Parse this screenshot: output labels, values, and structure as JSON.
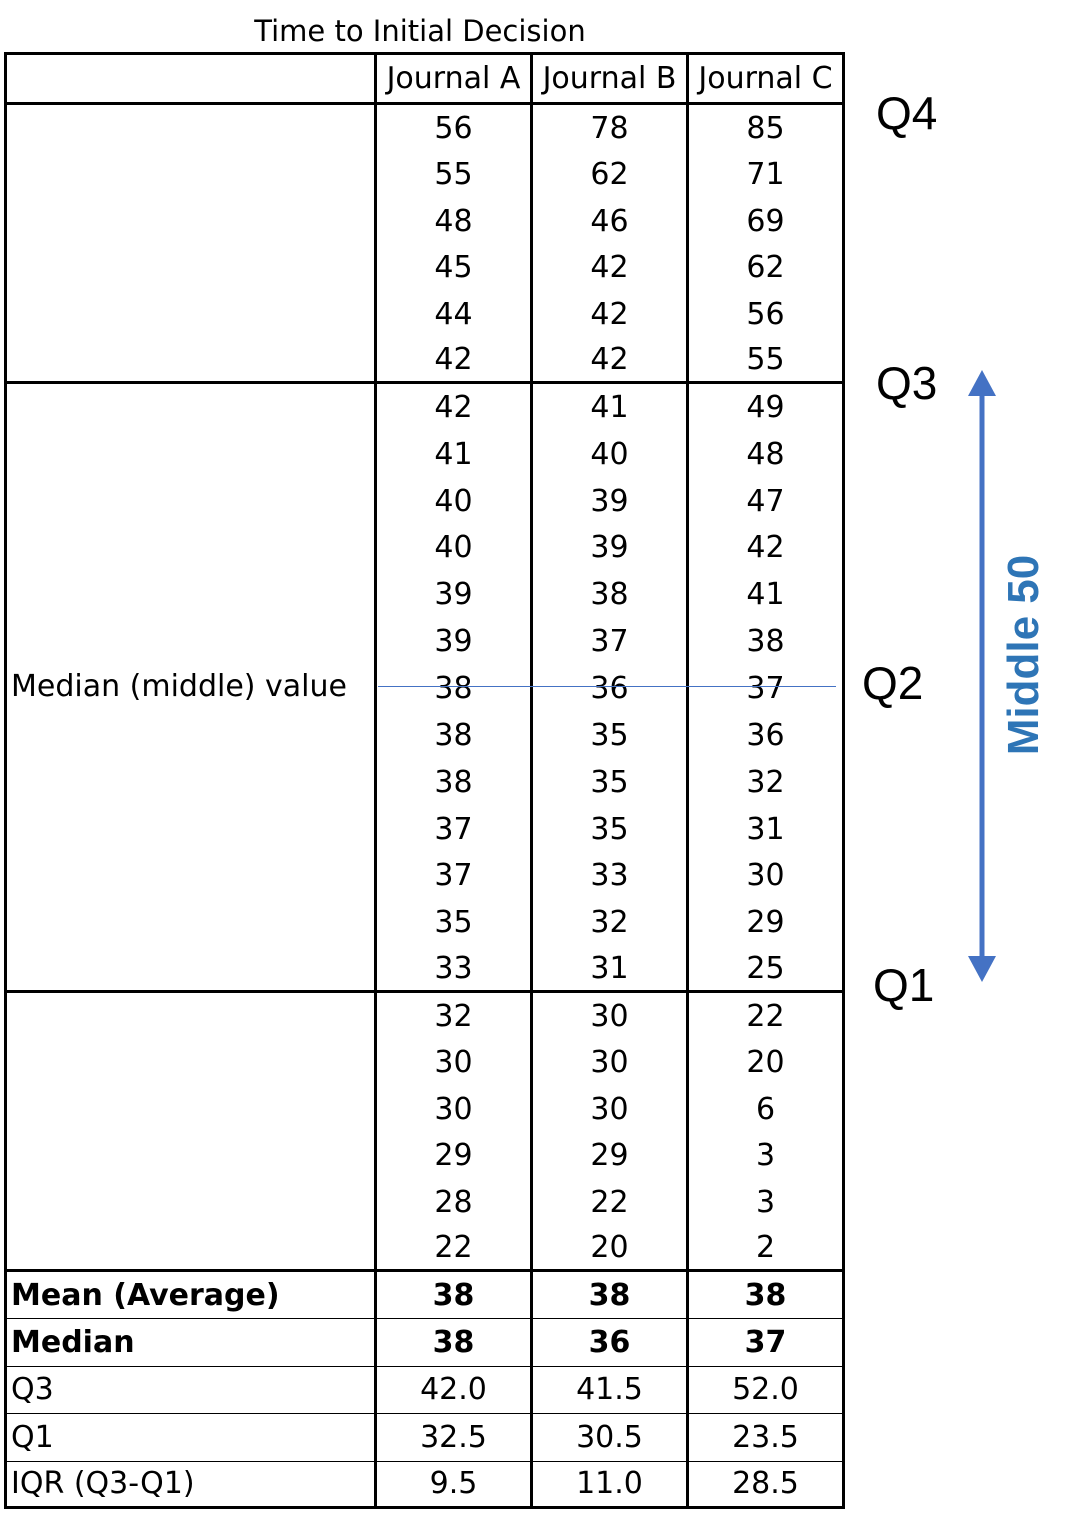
{
  "chart_data": {
    "type": "table",
    "title": "Time to Initial Decision",
    "columns": [
      "Journal A",
      "Journal B",
      "Journal C"
    ],
    "groups": [
      {
        "label": "",
        "rows": [
          [
            56,
            78,
            85
          ],
          [
            55,
            62,
            71
          ],
          [
            48,
            46,
            69
          ],
          [
            45,
            42,
            62
          ],
          [
            44,
            42,
            56
          ],
          [
            42,
            42,
            55
          ]
        ]
      },
      {
        "label": "Median (middle) value",
        "rows": [
          [
            42,
            41,
            49
          ],
          [
            41,
            40,
            48
          ],
          [
            40,
            39,
            47
          ],
          [
            40,
            39,
            42
          ],
          [
            39,
            38,
            41
          ],
          [
            39,
            37,
            38
          ],
          [
            38,
            36,
            37
          ],
          [
            38,
            35,
            36
          ],
          [
            38,
            35,
            32
          ],
          [
            37,
            35,
            31
          ],
          [
            37,
            33,
            30
          ],
          [
            35,
            32,
            29
          ],
          [
            33,
            31,
            25
          ]
        ]
      },
      {
        "label": "",
        "rows": [
          [
            32,
            30,
            22
          ],
          [
            30,
            30,
            20
          ],
          [
            30,
            30,
            6
          ],
          [
            29,
            29,
            3
          ],
          [
            28,
            22,
            3
          ],
          [
            22,
            20,
            2
          ]
        ]
      }
    ],
    "summary": [
      {
        "label": "Mean (Average)",
        "values": [
          "38",
          "38",
          "38"
        ],
        "bold": true
      },
      {
        "label": "Median",
        "values": [
          "38",
          "36",
          "37"
        ],
        "bold": true
      },
      {
        "label": "Q3",
        "values": [
          "42.0",
          "41.5",
          "52.0"
        ],
        "bold": false
      },
      {
        "label": "Q1",
        "values": [
          "32.5",
          "30.5",
          "23.5"
        ],
        "bold": false
      },
      {
        "label": "IQR (Q3-Q1)",
        "values": [
          "9.5",
          "11.0",
          "28.5"
        ],
        "bold": false
      }
    ],
    "annotations": {
      "q4": "Q4",
      "q3": "Q3",
      "q2": "Q2",
      "q1": "Q1",
      "middle": "Middle 50",
      "arrow_color": "#4472c4",
      "middle_color": "#2e75b6",
      "median_line_color": "#4472c4"
    }
  }
}
